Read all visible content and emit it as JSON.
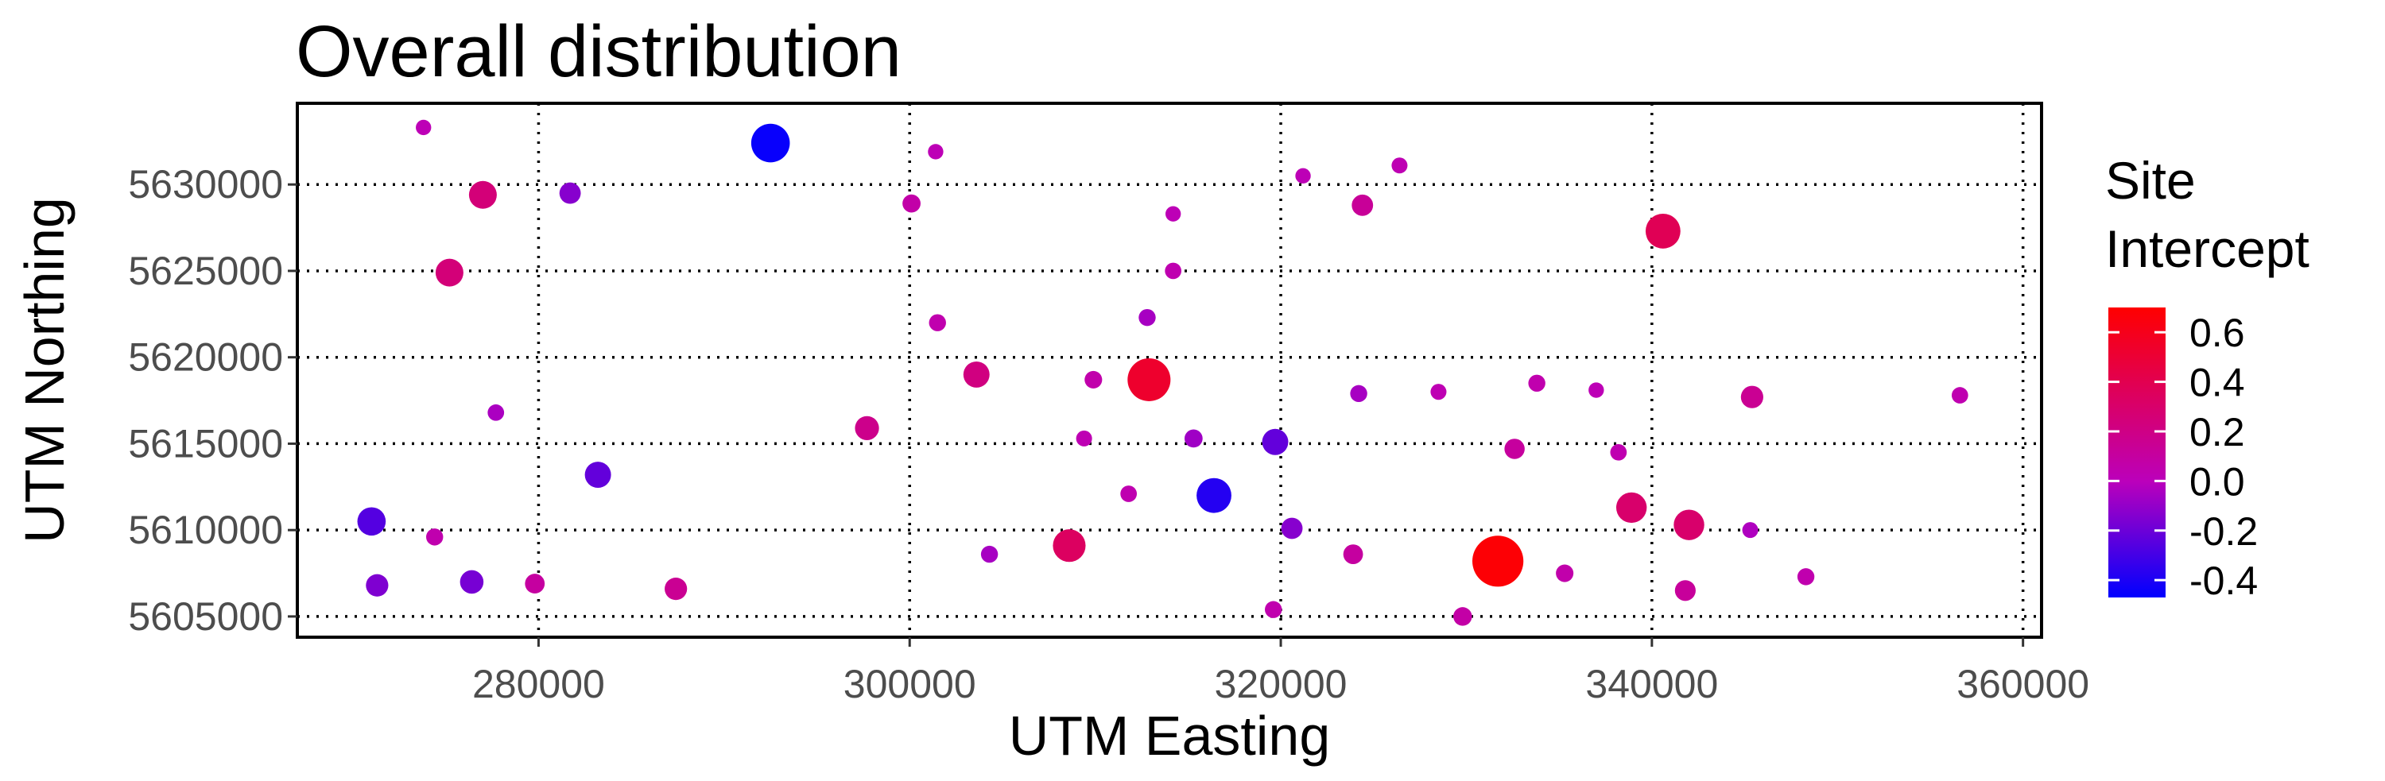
{
  "chart_data": {
    "type": "scatter",
    "title": "Overall distribution",
    "xlabel": "UTM Easting",
    "ylabel": "UTM Northing",
    "xlim": [
      267000,
      361000
    ],
    "ylim": [
      5603800,
      5634700
    ],
    "x_ticks": [
      280000,
      300000,
      320000,
      340000,
      360000
    ],
    "x_tick_labels": [
      "280000",
      "300000",
      "320000",
      "340000",
      "360000"
    ],
    "y_ticks": [
      5605000,
      5610000,
      5615000,
      5620000,
      5625000,
      5630000
    ],
    "y_tick_labels": [
      "5605000",
      "5610000",
      "5615000",
      "5620000",
      "5625000",
      "5630000"
    ],
    "grid": true,
    "legend": {
      "title_lines": [
        "Site",
        "Intercept"
      ],
      "placement": "right",
      "min": -0.47,
      "max": 0.7,
      "ticks": [
        0.6,
        0.4,
        0.2,
        0.0,
        -0.2,
        -0.4
      ],
      "tick_labels": [
        "0.6",
        "0.4",
        "0.2",
        "0.0",
        "-0.2",
        "-0.4"
      ],
      "color_low": "#0000ff",
      "color_mid": "#bb00bb",
      "color_high": "#ff0000"
    },
    "size_note": "point size grows with absolute intercept",
    "points": [
      {
        "x": 273800,
        "y": 5633300,
        "value": 0.02
      },
      {
        "x": 292500,
        "y": 5632400,
        "value": -0.45
      },
      {
        "x": 301400,
        "y": 5631900,
        "value": 0.02
      },
      {
        "x": 326400,
        "y": 5631100,
        "value": 0.03
      },
      {
        "x": 321200,
        "y": 5630500,
        "value": 0.02
      },
      {
        "x": 277000,
        "y": 5629400,
        "value": 0.25
      },
      {
        "x": 281700,
        "y": 5629500,
        "value": -0.13
      },
      {
        "x": 300100,
        "y": 5628900,
        "value": 0.07
      },
      {
        "x": 324400,
        "y": 5628800,
        "value": 0.13
      },
      {
        "x": 314200,
        "y": 5628300,
        "value": 0.02
      },
      {
        "x": 340600,
        "y": 5627300,
        "value": 0.38
      },
      {
        "x": 275200,
        "y": 5624900,
        "value": 0.25
      },
      {
        "x": 314200,
        "y": 5625000,
        "value": 0.04
      },
      {
        "x": 301500,
        "y": 5622000,
        "value": 0.05
      },
      {
        "x": 312800,
        "y": 5622300,
        "value": -0.05
      },
      {
        "x": 303600,
        "y": 5619000,
        "value": 0.22
      },
      {
        "x": 309900,
        "y": 5618700,
        "value": 0.06
      },
      {
        "x": 312900,
        "y": 5618700,
        "value": 0.53
      },
      {
        "x": 333800,
        "y": 5618500,
        "value": 0.05
      },
      {
        "x": 337000,
        "y": 5618100,
        "value": 0.02
      },
      {
        "x": 324200,
        "y": 5617900,
        "value": -0.05
      },
      {
        "x": 328500,
        "y": 5618000,
        "value": 0.03
      },
      {
        "x": 345400,
        "y": 5617700,
        "value": 0.15
      },
      {
        "x": 356600,
        "y": 5617800,
        "value": 0.04
      },
      {
        "x": 277700,
        "y": 5616800,
        "value": -0.04
      },
      {
        "x": 297700,
        "y": 5615900,
        "value": 0.18
      },
      {
        "x": 309400,
        "y": 5615300,
        "value": 0.03
      },
      {
        "x": 315300,
        "y": 5615300,
        "value": -0.07
      },
      {
        "x": 319700,
        "y": 5615100,
        "value": -0.22
      },
      {
        "x": 332600,
        "y": 5614700,
        "value": 0.11
      },
      {
        "x": 338200,
        "y": 5614500,
        "value": 0.04
      },
      {
        "x": 283200,
        "y": 5613200,
        "value": -0.22
      },
      {
        "x": 311800,
        "y": 5612100,
        "value": 0.04
      },
      {
        "x": 316400,
        "y": 5612000,
        "value": -0.38
      },
      {
        "x": 338900,
        "y": 5611300,
        "value": 0.3
      },
      {
        "x": 271000,
        "y": 5610500,
        "value": -0.26
      },
      {
        "x": 274400,
        "y": 5609600,
        "value": 0.05
      },
      {
        "x": 320600,
        "y": 5610100,
        "value": -0.13
      },
      {
        "x": 342000,
        "y": 5610300,
        "value": 0.3
      },
      {
        "x": 345300,
        "y": 5610000,
        "value": -0.03
      },
      {
        "x": 304300,
        "y": 5608600,
        "value": -0.05
      },
      {
        "x": 308600,
        "y": 5609100,
        "value": 0.34
      },
      {
        "x": 323900,
        "y": 5608600,
        "value": 0.1
      },
      {
        "x": 331700,
        "y": 5608200,
        "value": 0.68
      },
      {
        "x": 335300,
        "y": 5607500,
        "value": 0.06
      },
      {
        "x": 348300,
        "y": 5607300,
        "value": 0.05
      },
      {
        "x": 271300,
        "y": 5606800,
        "value": -0.15
      },
      {
        "x": 276400,
        "y": 5607000,
        "value": -0.17
      },
      {
        "x": 279800,
        "y": 5606900,
        "value": 0.1
      },
      {
        "x": 287400,
        "y": 5606600,
        "value": 0.15
      },
      {
        "x": 341800,
        "y": 5606500,
        "value": 0.12
      },
      {
        "x": 319600,
        "y": 5605400,
        "value": 0.05
      },
      {
        "x": 329800,
        "y": 5605000,
        "value": 0.08
      }
    ]
  }
}
